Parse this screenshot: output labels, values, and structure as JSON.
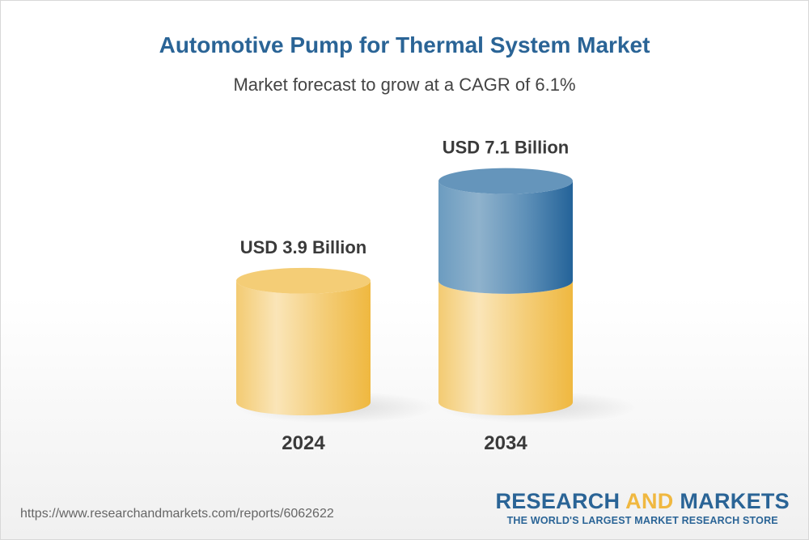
{
  "title": "Automotive Pump for Thermal System Market",
  "subtitle": "Market forecast to grow at a CAGR of 6.1%",
  "url": "https://www.researchandmarkets.com/reports/6062622",
  "logo": {
    "word1": "RESEARCH",
    "word2": "AND",
    "word3": "MARKETS",
    "tagline": "THE WORLD'S LARGEST MARKET RESEARCH STORE"
  },
  "colors": {
    "base": "#f2c050",
    "growth": "#2a6496",
    "title": "#2a6496"
  },
  "chart_data": {
    "type": "bar",
    "style": "3d-cylinder",
    "categories": [
      "2024",
      "2034"
    ],
    "values": [
      3.9,
      7.1
    ],
    "value_labels": [
      "USD 3.9 Billion",
      "USD 7.1 Billion"
    ],
    "unit": "USD Billion",
    "grid": false
  }
}
